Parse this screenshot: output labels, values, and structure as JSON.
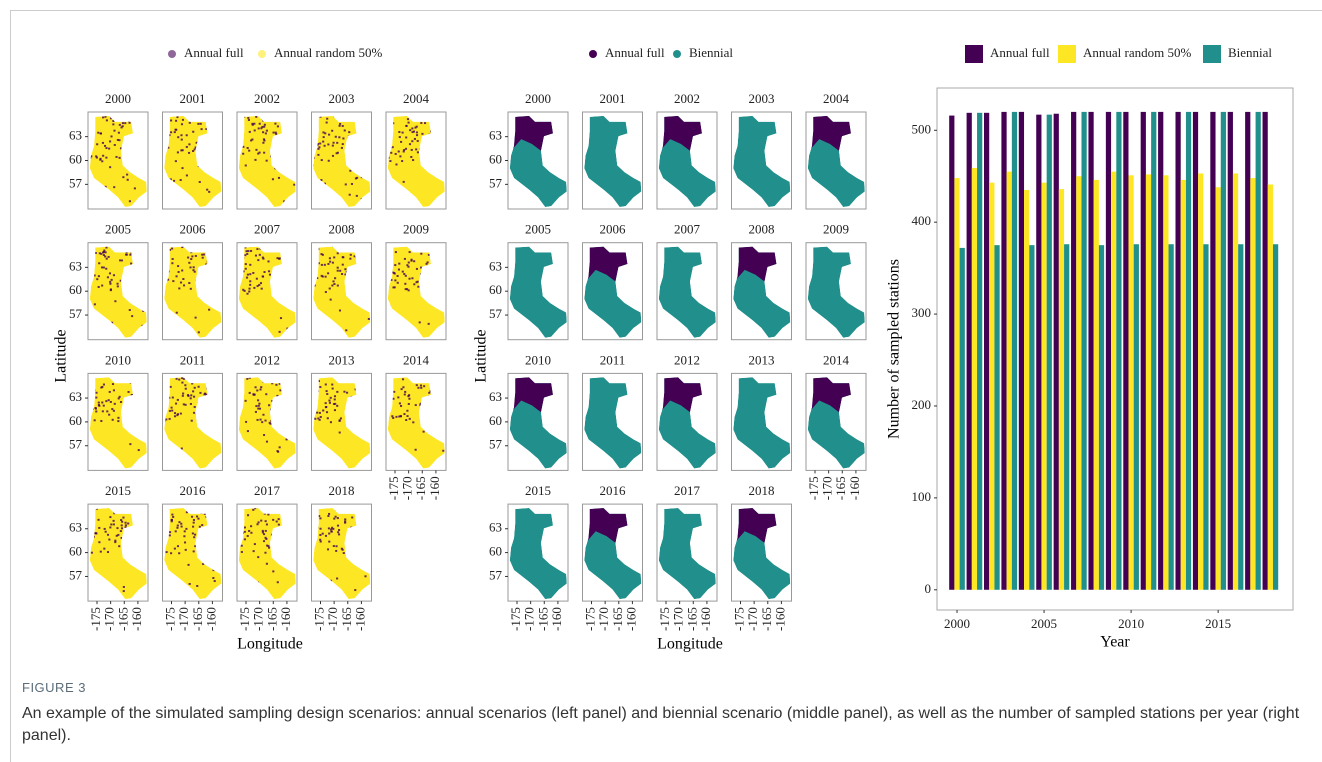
{
  "chart_data": [
    {
      "type": "map",
      "legend_position": "top",
      "series": [
        {
          "name": "Annual full",
          "color": "#440154"
        },
        {
          "name": "Annual random 50%",
          "color": "#fde725"
        }
      ],
      "panels": [
        "2000",
        "2001",
        "2002",
        "2003",
        "2004",
        "2005",
        "2006",
        "2007",
        "2008",
        "2009",
        "2010",
        "2011",
        "2012",
        "2013",
        "2014",
        "2015",
        "2016",
        "2017",
        "2018"
      ],
      "xlabel": "Longitude",
      "ylabel": "Latitude",
      "xlim": [
        -178.3,
        -156.3
      ],
      "ylim": [
        53.9,
        66.1
      ],
      "xticks": [
        -175,
        -170,
        -165,
        -160
      ],
      "yticks": [
        57,
        60,
        63
      ]
    },
    {
      "type": "map",
      "legend_position": "top",
      "series": [
        {
          "name": "Annual full",
          "color": "#440154"
        },
        {
          "name": "Biennial",
          "color": "#21908c"
        }
      ],
      "panels": [
        "2000",
        "2001",
        "2002",
        "2003",
        "2004",
        "2005",
        "2006",
        "2007",
        "2008",
        "2009",
        "2010",
        "2011",
        "2012",
        "2013",
        "2014",
        "2015",
        "2016",
        "2017",
        "2018"
      ],
      "xlabel": "Longitude",
      "ylabel": "Latitude",
      "xlim": [
        -178.3,
        -156.3
      ],
      "ylim": [
        53.9,
        66.1
      ],
      "xticks": [
        -175,
        -170,
        -165,
        -160
      ],
      "yticks": [
        57,
        60,
        63
      ]
    },
    {
      "type": "bar",
      "legend_position": "top",
      "x": [
        2000,
        2001,
        2002,
        2003,
        2004,
        2005,
        2006,
        2007,
        2008,
        2009,
        2010,
        2011,
        2012,
        2013,
        2014,
        2015,
        2016,
        2017,
        2018
      ],
      "series": [
        {
          "name": "Annual full",
          "color": "#440154",
          "values": [
            516,
            519,
            519,
            520,
            520,
            517,
            518,
            520,
            520,
            520,
            520,
            520,
            520,
            520,
            520,
            520,
            520,
            520,
            520
          ]
        },
        {
          "name": "Annual random 50%",
          "color": "#fde725",
          "values": [
            448,
            459,
            443,
            455,
            435,
            443,
            436,
            450,
            446,
            455,
            451,
            452,
            451,
            446,
            453,
            438,
            453,
            448,
            441
          ]
        },
        {
          "name": "Biennial",
          "color": "#21908c",
          "values": [
            372,
            519,
            375,
            520,
            375,
            517,
            376,
            520,
            375,
            520,
            376,
            520,
            376,
            520,
            376,
            520,
            376,
            520,
            376
          ]
        }
      ],
      "xlabel": "Year",
      "ylabel": "Number of sampled stations",
      "xlim": [
        1998.85,
        2019.3
      ],
      "ylim": [
        -22,
        546
      ],
      "xticks": [
        2000,
        2005,
        2010,
        2015
      ],
      "yticks": [
        0,
        100,
        200,
        300,
        400,
        500
      ]
    }
  ],
  "figure": {
    "label": "FIGURE 3",
    "caption": "An example of the simulated sampling design scenarios: annual scenarios (left panel) and biennial scenario (middle panel), as well as the number of sampled stations per year (right panel)."
  }
}
